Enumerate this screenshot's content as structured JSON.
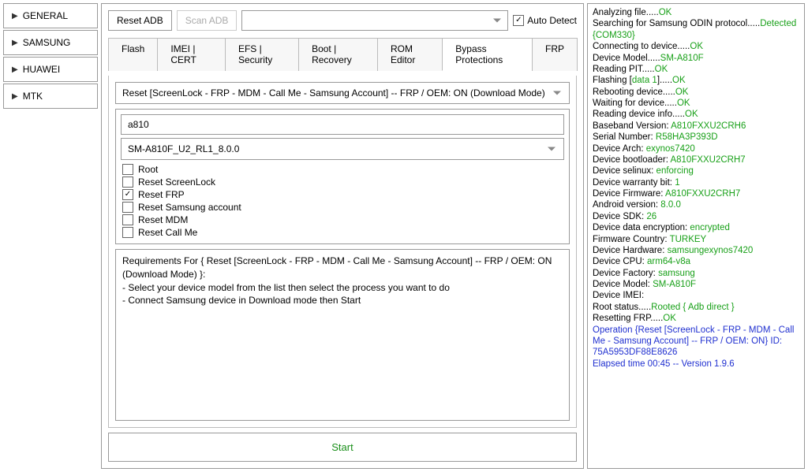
{
  "sidebar": {
    "items": [
      {
        "label": "GENERAL"
      },
      {
        "label": "SAMSUNG"
      },
      {
        "label": "HUAWEI"
      },
      {
        "label": "MTK"
      }
    ]
  },
  "toolbar": {
    "reset_adb": "Reset ADB",
    "scan_adb": "Scan ADB",
    "auto_detect": "Auto Detect",
    "auto_detect_checked": "✓"
  },
  "tabs": [
    {
      "label": "Flash"
    },
    {
      "label": "IMEI | CERT"
    },
    {
      "label": "EFS | Security"
    },
    {
      "label": "Boot | Recovery"
    },
    {
      "label": "ROM Editor"
    },
    {
      "label": "Bypass Protections"
    },
    {
      "label": "FRP"
    }
  ],
  "active_tab": 5,
  "operation_select": "Reset [ScreenLock - FRP - MDM - Call Me - Samsung Account] -- FRP / OEM: ON (Download Mode)",
  "filter_value": "a810",
  "model_select": "SM-A810F_U2_RL1_8.0.0",
  "options": [
    {
      "label": "Root",
      "checked": ""
    },
    {
      "label": "Reset ScreenLock",
      "checked": ""
    },
    {
      "label": "Reset FRP",
      "checked": "✓"
    },
    {
      "label": "Reset Samsung account",
      "checked": ""
    },
    {
      "label": "Reset MDM",
      "checked": ""
    },
    {
      "label": "Reset Call Me",
      "checked": ""
    }
  ],
  "requirements": {
    "line1": "Requirements For { Reset [ScreenLock - FRP - MDM - Call Me - Samsung Account] -- FRP / OEM: ON (Download Mode) }:",
    "line2": "- Select your device model from the list then select the process you want to do",
    "line3": "- Connect Samsung device in Download mode then Start"
  },
  "start_label": "Start",
  "log": [
    [
      {
        "t": "Analyzing file....."
      },
      {
        "t": "OK",
        "c": "g"
      }
    ],
    [
      {
        "t": "Searching for Samsung ODIN protocol....."
      },
      {
        "t": "Detected {COM330}",
        "c": "g"
      }
    ],
    [
      {
        "t": "Connecting to device....."
      },
      {
        "t": "OK",
        "c": "g"
      }
    ],
    [
      {
        "t": "Device Model....."
      },
      {
        "t": "SM-A810F",
        "c": "g"
      }
    ],
    [
      {
        "t": "Reading PIT....."
      },
      {
        "t": "OK",
        "c": "g"
      }
    ],
    [
      {
        "t": "Flashing ["
      },
      {
        "t": "data 1",
        "c": "g"
      },
      {
        "t": "]....."
      },
      {
        "t": "OK",
        "c": "g"
      }
    ],
    [
      {
        "t": "Rebooting device....."
      },
      {
        "t": "OK",
        "c": "g"
      }
    ],
    [
      {
        "t": "Waiting for device....."
      },
      {
        "t": "OK",
        "c": "g"
      }
    ],
    [
      {
        "t": "Reading device info....."
      },
      {
        "t": "OK",
        "c": "g"
      }
    ],
    [
      {
        "t": "Baseband Version: "
      },
      {
        "t": "A810FXXU2CRH6",
        "c": "g"
      }
    ],
    [
      {
        "t": "Serial Number: "
      },
      {
        "t": "R58HA3P393D",
        "c": "g"
      }
    ],
    [
      {
        "t": "Device Arch: "
      },
      {
        "t": "exynos7420",
        "c": "g"
      }
    ],
    [
      {
        "t": "Device bootloader: "
      },
      {
        "t": "A810FXXU2CRH7",
        "c": "g"
      }
    ],
    [
      {
        "t": "Device selinux: "
      },
      {
        "t": "enforcing",
        "c": "g"
      }
    ],
    [
      {
        "t": "Device warranty bit: "
      },
      {
        "t": "1",
        "c": "g"
      }
    ],
    [
      {
        "t": "Device Firmware: "
      },
      {
        "t": "A810FXXU2CRH7",
        "c": "g"
      }
    ],
    [
      {
        "t": "Android version: "
      },
      {
        "t": "8.0.0",
        "c": "g"
      }
    ],
    [
      {
        "t": "Device SDK: "
      },
      {
        "t": "26",
        "c": "g"
      }
    ],
    [
      {
        "t": "Device data encryption: "
      },
      {
        "t": "encrypted",
        "c": "g"
      }
    ],
    [
      {
        "t": "Firmware Country: "
      },
      {
        "t": "TURKEY",
        "c": "g"
      }
    ],
    [
      {
        "t": "Device Hardware: "
      },
      {
        "t": "samsungexynos7420",
        "c": "g"
      }
    ],
    [
      {
        "t": "Device CPU: "
      },
      {
        "t": "arm64-v8a",
        "c": "g"
      }
    ],
    [
      {
        "t": "Device Factory: "
      },
      {
        "t": "samsung",
        "c": "g"
      }
    ],
    [
      {
        "t": "Device Model: "
      },
      {
        "t": "SM-A810F",
        "c": "g"
      }
    ],
    [
      {
        "t": "Device IMEI:"
      }
    ],
    [
      {
        "t": "Root status....."
      },
      {
        "t": "Rooted { Adb direct }",
        "c": "g"
      }
    ],
    [
      {
        "t": "Resetting FRP....."
      },
      {
        "t": "OK",
        "c": "g"
      }
    ],
    [
      {
        "t": "Operation {Reset [ScreenLock - FRP - MDM - Call Me - Samsung Account] -- FRP / OEM: ON} ID: 75A5953DF88E8626",
        "c": "b"
      }
    ],
    [
      {
        "t": "Elapsed time 00:45 -- Version 1.9.6",
        "c": "b"
      }
    ]
  ]
}
